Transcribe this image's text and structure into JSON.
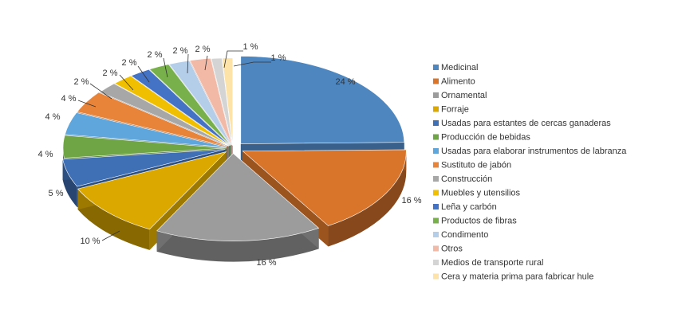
{
  "chart_data": {
    "type": "pie",
    "style": "3d-exploded",
    "legend_position": "right",
    "categories": [
      "Medicinal",
      "Alimento",
      "Ornamental",
      "Forraje",
      "Usadas para estantes de cercas ganaderas",
      "Producción de bebidas",
      "Usadas para elaborar instrumentos de labranza",
      "Sustituto de jabón",
      "Construcción",
      "Muebles y utensilios",
      "Leña y carbón",
      "Productos de fibras",
      "Condimento",
      "Otros",
      "Medios de transporte rural",
      "Cera y materia prima para fabricar hule"
    ],
    "values": [
      24,
      16,
      16,
      10,
      5,
      4,
      4,
      4,
      2,
      2,
      2,
      2,
      2,
      2,
      1,
      1
    ],
    "labels": [
      "24 %",
      "16 %",
      "16 %",
      "10 %",
      "5 %",
      "4 %",
      "4 %",
      "4 %",
      "2 %",
      "2 %",
      "2 %",
      "2 %",
      "2 %",
      "2 %",
      "1 %",
      "1 %"
    ],
    "colors": [
      "#4e86bf",
      "#d9742b",
      "#9c9c9c",
      "#dba800",
      "#3f6fb5",
      "#6fa544",
      "#5ea6dc",
      "#e8843a",
      "#a7a7a7",
      "#f0c000",
      "#4472c4",
      "#78b04c",
      "#b4cde8",
      "#f2b9a7",
      "#d4d4d4",
      "#fde3a7"
    ]
  }
}
